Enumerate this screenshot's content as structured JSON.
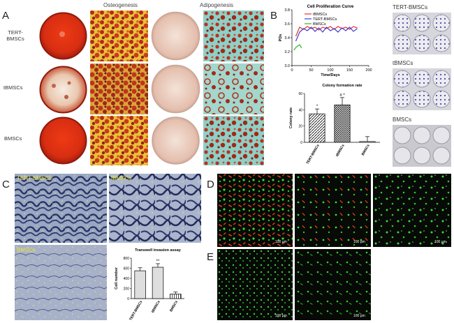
{
  "panels": {
    "A": {
      "letter": "A",
      "col_osteo": "Osteogenesis",
      "col_adipo": "Adipogenesis",
      "row_labels": [
        "TERT-\nBMSCs",
        "tBMSCs",
        "BMSCs"
      ]
    },
    "B": {
      "letter": "B",
      "well_labels": [
        "TERT-BMSCs",
        "tBMSCs",
        "BMSCs"
      ]
    },
    "C": {
      "letter": "C",
      "image_labels": [
        "TERT-BMSCs",
        "tBMSCs",
        "BMSCs"
      ]
    },
    "D": {
      "letter": "D",
      "scale_label": "100 µm"
    },
    "E": {
      "letter": "E",
      "scale_label": "100 µm"
    }
  },
  "colors": {
    "red_stain": "#d8361a",
    "orange_stain": "#c8401a",
    "yellow_bg": "#e8c23a",
    "adipo_dish": "#e9c7b8",
    "teal_bg": "#7ec7c0",
    "hematox_blue": "#3a4476",
    "fluor_green": "#37d637",
    "fluor_red": "#e0401d"
  },
  "chart_data": [
    {
      "type": "line",
      "title": "Cell Proliferation Curve",
      "xlabel": "Time/Days",
      "ylabel": "PDs",
      "xlim": [
        0,
        200
      ],
      "ylim": [
        3.0,
        3.8
      ],
      "xticks": [
        0,
        50,
        100,
        150,
        200
      ],
      "yticks": [
        3.0,
        3.2,
        3.4,
        3.6,
        3.8
      ],
      "legend_position": "top-right",
      "series": [
        {
          "name": "tBMSCs",
          "color": "#e8332a",
          "x": [
            10,
            20,
            30,
            40,
            50,
            60,
            70,
            80,
            90,
            100,
            110,
            120,
            130,
            140,
            150,
            160,
            170
          ],
          "y": [
            3.42,
            3.55,
            3.52,
            3.56,
            3.53,
            3.55,
            3.51,
            3.55,
            3.53,
            3.56,
            3.52,
            3.56,
            3.53,
            3.55,
            3.52,
            3.56,
            3.54
          ]
        },
        {
          "name": "TERT-BMSCs",
          "color": "#3a3fd0",
          "x": [
            10,
            20,
            30,
            40,
            50,
            60,
            70,
            80,
            90,
            100,
            110,
            120,
            130,
            140,
            150,
            160,
            170
          ],
          "y": [
            3.35,
            3.48,
            3.53,
            3.5,
            3.55,
            3.49,
            3.54,
            3.48,
            3.55,
            3.5,
            3.53,
            3.48,
            3.54,
            3.5,
            3.55,
            3.49,
            3.53
          ]
        },
        {
          "name": "BMSCs",
          "color": "#2fb52f",
          "x": [
            5,
            10,
            15,
            20,
            25
          ],
          "y": [
            3.22,
            3.26,
            3.28,
            3.3,
            3.25
          ]
        }
      ]
    },
    {
      "type": "bar",
      "title": "Colony formation rate",
      "ylabel": "Colony rate",
      "categories": [
        "TERT-BMSCs",
        "tBMSCs",
        "BMSCs"
      ],
      "values": [
        35,
        46,
        1
      ],
      "errors": [
        6,
        9,
        6
      ],
      "annotations": [
        "*",
        "# *",
        ""
      ],
      "ylim": [
        0,
        60
      ],
      "yticks": [
        0,
        20,
        40,
        60
      ]
    },
    {
      "type": "bar",
      "title": "Transwell invasion assay",
      "ylabel": "Cell number",
      "categories": [
        "TERT-BMSCs",
        "tBMSCs",
        "BMSCs"
      ],
      "values": [
        550,
        620,
        90
      ],
      "errors": [
        60,
        70,
        40
      ],
      "annotations": [
        "",
        "**",
        ""
      ],
      "ylim": [
        0,
        800
      ],
      "yticks": [
        0,
        200,
        400,
        600,
        800
      ]
    }
  ]
}
